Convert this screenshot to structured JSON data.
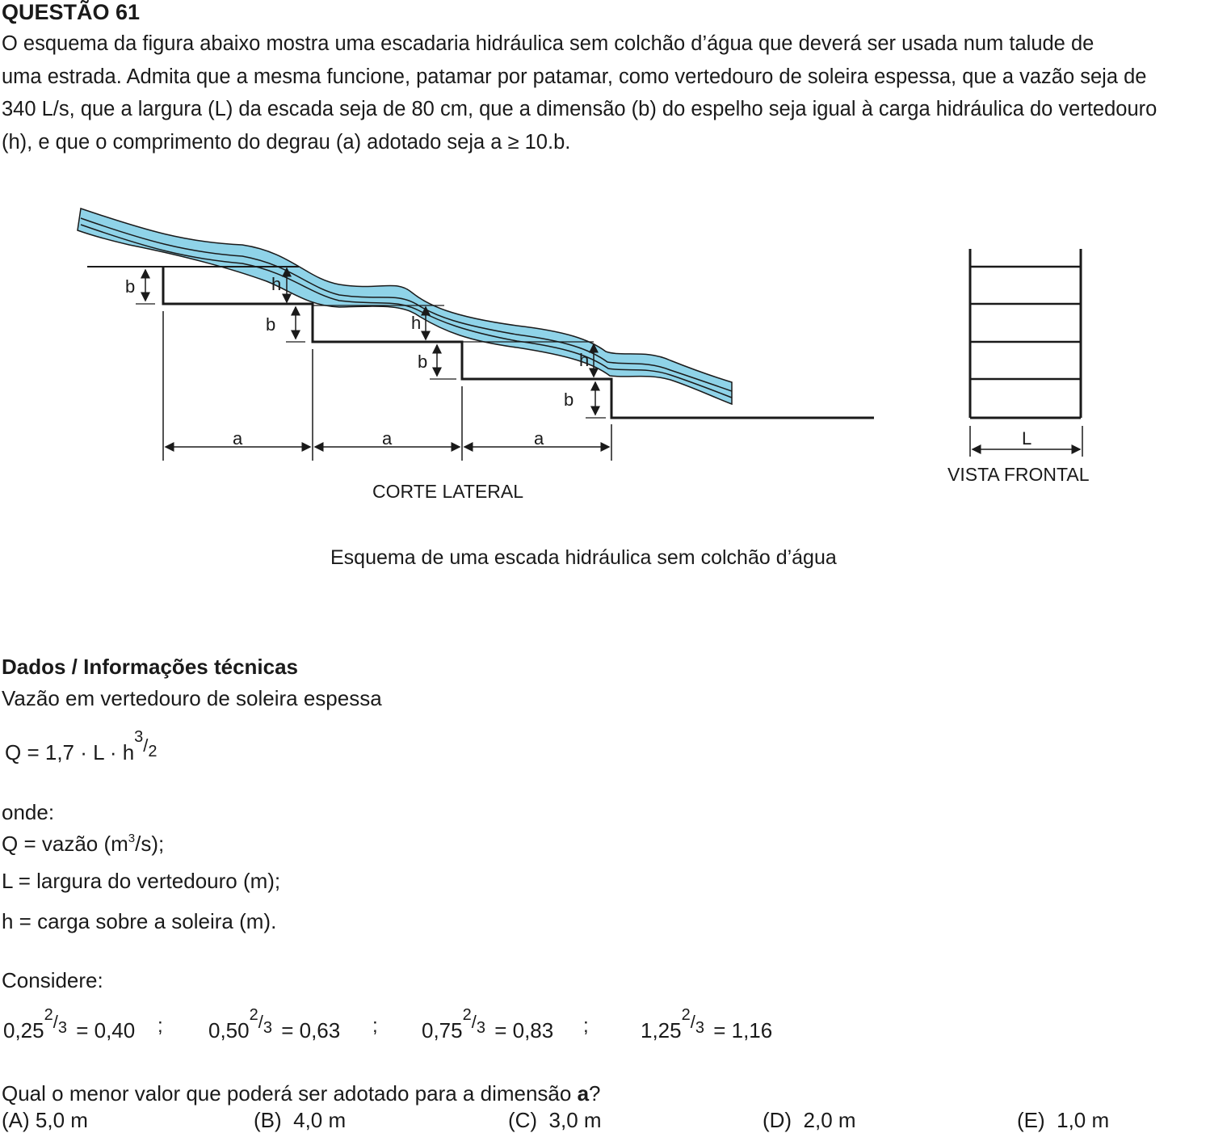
{
  "question": {
    "title": "QUESTÃO 61",
    "lines": [
      "O esquema da figura abaixo mostra uma escadaria hidráulica sem colchão d’água que deverá ser usada num talude de",
      "uma estrada. Admita que a mesma funcione, patamar por patamar, como vertedouro de soleira espessa, que a vazão seja de",
      "340 L/s, que a largura (L) da escada seja de 80 cm, que a dimensão (b) do espelho seja igual à carga hidráulica do vertedouro",
      "(h), e que o comprimento do degrau (a) adotado seja a ≥ 10.b."
    ]
  },
  "figure": {
    "side_view_label": "CORTE LATERAL",
    "front_view_label": "VISTA FRONTAL",
    "caption": "Esquema de uma escada hidráulica sem colchão d’água",
    "dim_b": "b",
    "dim_h": "h",
    "dim_a": "a",
    "dim_L": "L",
    "water_color": "#8fd3e8"
  },
  "data_section": {
    "heading": "Dados / Informações técnicas",
    "subtitle": "Vazão em vertedouro de soleira espessa",
    "formula_left": "Q = 1,7 · L · h",
    "formula_exp_num": "3",
    "formula_exp_den": "2",
    "onde": "onde:",
    "q_def_a": "Q = vazão (m",
    "q_def_sup": "3",
    "q_def_b": "/s);",
    "l_def": "L = largura do vertedouro (m);",
    "h_def": "h = carga sobre a soleira (m).",
    "considere": "Considere:",
    "considerations": [
      {
        "base": "0,25",
        "num": "2",
        "den": "3",
        "result": "= 0,40"
      },
      {
        "base": "0,50",
        "num": "2",
        "den": "3",
        "result": "= 0,63"
      },
      {
        "base": "0,75",
        "num": "2",
        "den": "3",
        "result": "= 0,83"
      },
      {
        "base": "1,25",
        "num": "2",
        "den": "3",
        "result": "= 1,16"
      }
    ],
    "separator": ";"
  },
  "prompt": {
    "text": "Qual o menor valor que poderá ser adotado para a dimensão ",
    "bold": "a",
    "end": "?"
  },
  "options": [
    {
      "letter": "(A)",
      "value": "5,0 m"
    },
    {
      "letter": "(B)",
      "value": "4,0 m"
    },
    {
      "letter": "(C)",
      "value": "3,0 m"
    },
    {
      "letter": "(D)",
      "value": "2,0 m"
    },
    {
      "letter": "(E)",
      "value": "1,0 m"
    }
  ]
}
